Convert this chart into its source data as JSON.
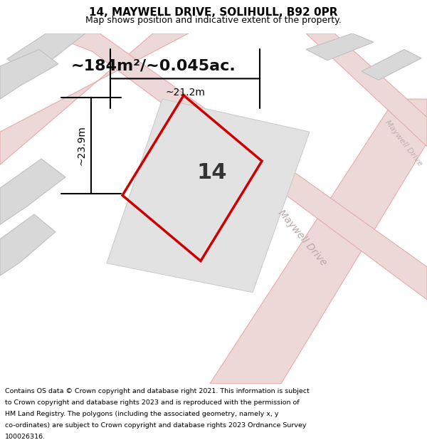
{
  "title_line1": "14, MAYWELL DRIVE, SOLIHULL, B92 0PR",
  "title_line2": "Map shows position and indicative extent of the property.",
  "area_text": "~184m²/~0.045ac.",
  "plot_number": "14",
  "dim_width": "~21.2m",
  "dim_height": "~23.9m",
  "road_label": "Maywell Drive",
  "road_label_top": "Maywell Drive",
  "footer_lines": [
    "Contains OS data © Crown copyright and database right 2021. This information is subject",
    "to Crown copyright and database rights 2023 and is reproduced with the permission of",
    "HM Land Registry. The polygons (including the associated geometry, namely x, y",
    "co-ordinates) are subject to Crown copyright and database rights 2023 Ordnance Survey",
    "100026316."
  ],
  "map_bg": "#f0efea",
  "plot_outline_color": "#cc0000",
  "road_fill": "#edd8d8",
  "road_edge": "#e8aaaa",
  "building_fill": "#d8d8d8",
  "building_edge": "#c0c0c0",
  "footer_bg": "#ffffff",
  "header_bg": "#ffffff"
}
